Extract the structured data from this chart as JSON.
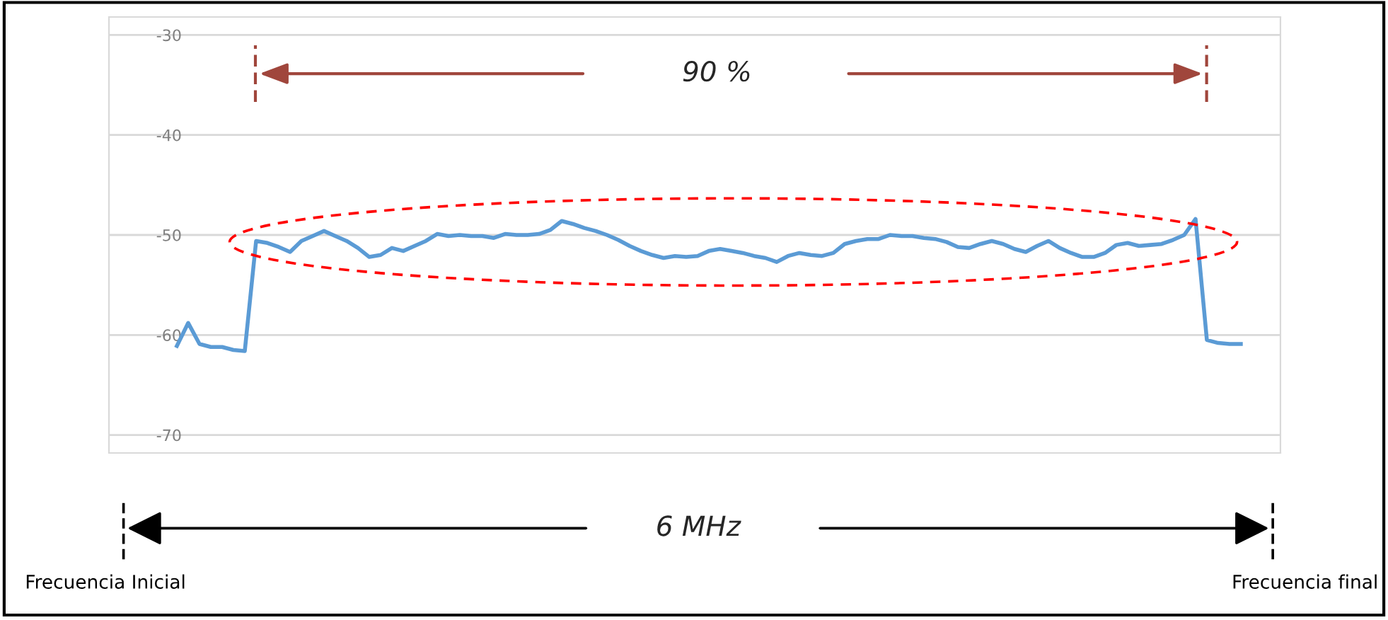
{
  "chart_data": {
    "type": "line",
    "categories": [
      null,
      null,
      null,
      null,
      null,
      null,
      null,
      null,
      null,
      null,
      null,
      null,
      null,
      null,
      null,
      null,
      null,
      null,
      null,
      null,
      null,
      null,
      null,
      null,
      null,
      null,
      null,
      null,
      null,
      null,
      null,
      null,
      null,
      null,
      null,
      null,
      null,
      null,
      null,
      null,
      null,
      null,
      null,
      null,
      null,
      null,
      null,
      null,
      null,
      null,
      null,
      null,
      null,
      null,
      null,
      null,
      null,
      null,
      null,
      null,
      null,
      null,
      null,
      null,
      null,
      null,
      null,
      null,
      null,
      null,
      null,
      null,
      null,
      null,
      null,
      null,
      null,
      null,
      null,
      null,
      null,
      null,
      null,
      null,
      null,
      null,
      null,
      null,
      null,
      null,
      null,
      null,
      null,
      null,
      null
    ],
    "series": [
      {
        "color": "#5b9bd5",
        "values": [
          -61.1,
          -58.8,
          -60.9,
          -61.2,
          -61.2,
          -61.5,
          -61.6,
          -50.6,
          -50.8,
          -51.2,
          -51.7,
          -50.6,
          -50.1,
          -49.6,
          -50.1,
          -50.6,
          -51.3,
          -52.2,
          -52.0,
          -51.3,
          -51.6,
          -51.1,
          -50.6,
          -49.9,
          -50.1,
          -50.0,
          -50.1,
          -50.1,
          -50.3,
          -49.9,
          -50.0,
          -50.0,
          -49.9,
          -49.5,
          -48.6,
          -48.9,
          -49.3,
          -49.6,
          -50.0,
          -50.5,
          -51.1,
          -51.6,
          -52.0,
          -52.3,
          -52.1,
          -52.2,
          -52.1,
          -51.6,
          -51.4,
          -51.6,
          -51.8,
          -52.1,
          -52.3,
          -52.7,
          -52.1,
          -51.8,
          -52.0,
          -52.1,
          -51.8,
          -50.9,
          -50.6,
          -50.4,
          -50.4,
          -50.0,
          -50.1,
          -50.1,
          -50.3,
          -50.4,
          -50.7,
          -51.2,
          -51.3,
          -50.9,
          -50.6,
          -50.9,
          -51.4,
          -51.7,
          -51.1,
          -50.6,
          -51.3,
          -51.8,
          -52.2,
          -52.2,
          -51.8,
          -51.0,
          -50.8,
          -51.1,
          -51.0,
          -50.9,
          -50.5,
          -50.0,
          -48.4,
          -60.5,
          -60.8,
          -60.9,
          -60.9
        ]
      }
    ],
    "ylim": [
      -71.8,
      -28.2
    ],
    "yticks": [
      -70,
      -60,
      -50,
      -40,
      -30
    ],
    "grid": "y",
    "marker": "none",
    "line_style": "solid",
    "annotations": [
      "90 %",
      "6 MHz",
      "Frecuencia Inicial",
      "Frecuencia final"
    ]
  }
}
